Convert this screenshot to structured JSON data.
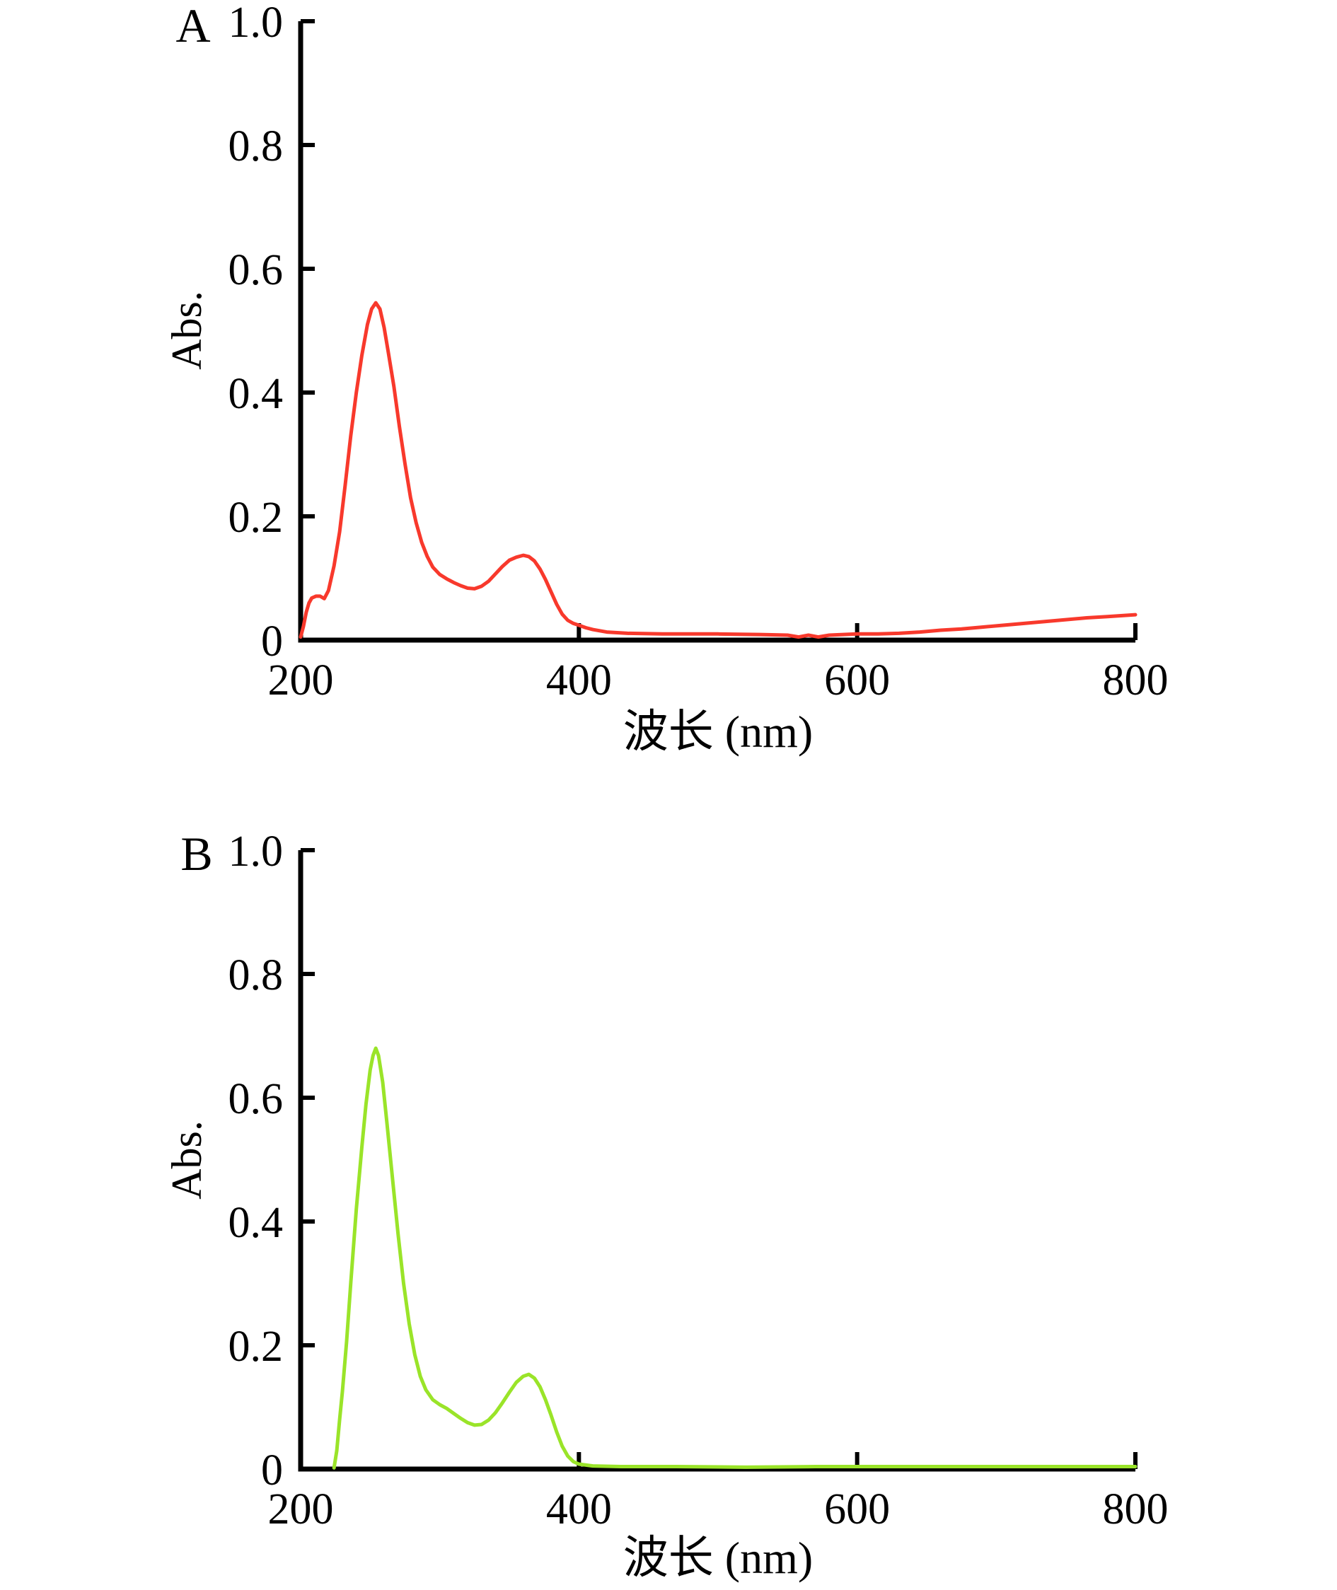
{
  "figure": {
    "background": "#ffffff",
    "axis_color": "#000000",
    "text_color": "#000000"
  },
  "chart_data": [
    {
      "type": "line",
      "panel": "A",
      "xlabel": "波长 (nm)",
      "ylabel": "Abs.",
      "xlim": [
        200,
        800
      ],
      "ylim": [
        0,
        1.0
      ],
      "x_ticks": [
        200,
        400,
        600,
        800
      ],
      "x_tick_labels": [
        "200",
        "400",
        "600",
        "800"
      ],
      "y_ticks": [
        0,
        0.2,
        0.4,
        0.6,
        0.8,
        1.0
      ],
      "y_tick_labels": [
        "0",
        "0.2",
        "0.4",
        "0.6",
        "0.8",
        "1.0"
      ],
      "grid": false,
      "legend": null,
      "series": [
        {
          "name": "uv-vis-spectrum-A",
          "color": "#f8392c",
          "peak_summary": "max 0.545 at 254 nm; secondary 0.137 at 360 nm",
          "points": [
            [
              200,
              0.005
            ],
            [
              202,
              0.022
            ],
            [
              204,
              0.045
            ],
            [
              206,
              0.06
            ],
            [
              208,
              0.068
            ],
            [
              211,
              0.071
            ],
            [
              214,
              0.071
            ],
            [
              217,
              0.067
            ],
            [
              220,
              0.08
            ],
            [
              224,
              0.12
            ],
            [
              228,
              0.175
            ],
            [
              232,
              0.25
            ],
            [
              236,
              0.33
            ],
            [
              240,
              0.4
            ],
            [
              244,
              0.46
            ],
            [
              248,
              0.51
            ],
            [
              251,
              0.535
            ],
            [
              254,
              0.545
            ],
            [
              257,
              0.535
            ],
            [
              260,
              0.505
            ],
            [
              263,
              0.465
            ],
            [
              267,
              0.41
            ],
            [
              271,
              0.345
            ],
            [
              275,
              0.285
            ],
            [
              279,
              0.23
            ],
            [
              283,
              0.19
            ],
            [
              287,
              0.158
            ],
            [
              291,
              0.135
            ],
            [
              295,
              0.118
            ],
            [
              300,
              0.106
            ],
            [
              305,
              0.099
            ],
            [
              310,
              0.093
            ],
            [
              315,
              0.088
            ],
            [
              320,
              0.084
            ],
            [
              325,
              0.083
            ],
            [
              330,
              0.087
            ],
            [
              335,
              0.095
            ],
            [
              340,
              0.107
            ],
            [
              345,
              0.119
            ],
            [
              350,
              0.129
            ],
            [
              355,
              0.134
            ],
            [
              360,
              0.137
            ],
            [
              364,
              0.135
            ],
            [
              368,
              0.128
            ],
            [
              372,
              0.115
            ],
            [
              376,
              0.098
            ],
            [
              380,
              0.078
            ],
            [
              384,
              0.058
            ],
            [
              388,
              0.042
            ],
            [
              392,
              0.032
            ],
            [
              396,
              0.027
            ],
            [
              400,
              0.024
            ],
            [
              405,
              0.02
            ],
            [
              410,
              0.017
            ],
            [
              420,
              0.013
            ],
            [
              435,
              0.011
            ],
            [
              460,
              0.01
            ],
            [
              500,
              0.01
            ],
            [
              530,
              0.009
            ],
            [
              550,
              0.008
            ],
            [
              558,
              0.005
            ],
            [
              565,
              0.008
            ],
            [
              572,
              0.005
            ],
            [
              580,
              0.008
            ],
            [
              590,
              0.009
            ],
            [
              600,
              0.01
            ],
            [
              615,
              0.01
            ],
            [
              630,
              0.011
            ],
            [
              645,
              0.013
            ],
            [
              660,
              0.016
            ],
            [
              675,
              0.018
            ],
            [
              690,
              0.021
            ],
            [
              705,
              0.024
            ],
            [
              720,
              0.027
            ],
            [
              735,
              0.03
            ],
            [
              750,
              0.033
            ],
            [
              765,
              0.036
            ],
            [
              780,
              0.038
            ],
            [
              800,
              0.041
            ]
          ]
        }
      ]
    },
    {
      "type": "line",
      "panel": "B",
      "xlabel": "波长 (nm)",
      "ylabel": "Abs.",
      "xlim": [
        200,
        800
      ],
      "ylim": [
        0,
        1.0
      ],
      "x_ticks": [
        200,
        400,
        600,
        800
      ],
      "x_tick_labels": [
        "200",
        "400",
        "600",
        "800"
      ],
      "y_ticks": [
        0,
        0.2,
        0.4,
        0.6,
        0.8,
        1.0
      ],
      "y_tick_labels": [
        "0",
        "0.2",
        "0.4",
        "0.6",
        "0.8",
        "1.0"
      ],
      "grid": false,
      "legend": null,
      "series": [
        {
          "name": "uv-vis-spectrum-B",
          "color": "#9ae429",
          "peak_summary": "max 0.68 at 254 nm; secondary 0.153 at 364 nm",
          "points": [
            [
              224,
              0.002
            ],
            [
              226,
              0.03
            ],
            [
              228,
              0.08
            ],
            [
              230,
              0.125
            ],
            [
              233,
              0.205
            ],
            [
              236,
              0.3
            ],
            [
              240,
              0.42
            ],
            [
              244,
              0.52
            ],
            [
              247,
              0.59
            ],
            [
              250,
              0.645
            ],
            [
              252,
              0.668
            ],
            [
              254,
              0.68
            ],
            [
              256,
              0.668
            ],
            [
              259,
              0.625
            ],
            [
              262,
              0.56
            ],
            [
              266,
              0.47
            ],
            [
              270,
              0.38
            ],
            [
              274,
              0.3
            ],
            [
              278,
              0.235
            ],
            [
              282,
              0.185
            ],
            [
              286,
              0.15
            ],
            [
              290,
              0.128
            ],
            [
              295,
              0.112
            ],
            [
              300,
              0.104
            ],
            [
              305,
              0.098
            ],
            [
              310,
              0.09
            ],
            [
              315,
              0.082
            ],
            [
              320,
              0.075
            ],
            [
              325,
              0.071
            ],
            [
              330,
              0.072
            ],
            [
              335,
              0.079
            ],
            [
              340,
              0.091
            ],
            [
              345,
              0.107
            ],
            [
              350,
              0.124
            ],
            [
              355,
              0.14
            ],
            [
              360,
              0.15
            ],
            [
              364,
              0.153
            ],
            [
              368,
              0.147
            ],
            [
              372,
              0.133
            ],
            [
              376,
              0.112
            ],
            [
              380,
              0.087
            ],
            [
              384,
              0.06
            ],
            [
              388,
              0.037
            ],
            [
              392,
              0.021
            ],
            [
              396,
              0.012
            ],
            [
              400,
              0.008
            ],
            [
              410,
              0.005
            ],
            [
              430,
              0.004
            ],
            [
              470,
              0.004
            ],
            [
              520,
              0.003
            ],
            [
              570,
              0.004
            ],
            [
              620,
              0.004
            ],
            [
              680,
              0.004
            ],
            [
              740,
              0.004
            ],
            [
              800,
              0.004
            ]
          ]
        }
      ]
    }
  ]
}
